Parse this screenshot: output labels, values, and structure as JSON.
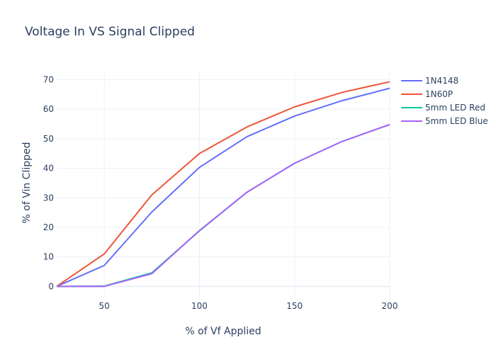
{
  "chart_data": {
    "type": "line",
    "title": "Voltage In VS Signal Clipped",
    "xlabel": "% of Vf Applied",
    "ylabel": "% of Vin Clipped",
    "x": [
      25,
      50,
      75,
      100,
      125,
      150,
      175,
      200
    ],
    "xlim": [
      25,
      200
    ],
    "ylim": [
      -4,
      73
    ],
    "xticks": [
      50,
      100,
      150,
      200
    ],
    "yticks": [
      0,
      10,
      20,
      30,
      40,
      50,
      60,
      70
    ],
    "grid": true,
    "legend_position": "top-right",
    "series": [
      {
        "name": "1N4148",
        "color": "#636efa",
        "values": [
          0,
          7.1,
          25.2,
          40.3,
          50.7,
          57.7,
          62.9,
          67.1
        ]
      },
      {
        "name": "1N60P",
        "color": "#EF553B",
        "values": [
          0,
          11,
          31,
          45,
          54,
          60.8,
          65.7,
          69.3
        ]
      },
      {
        "name": "5mm LED Red",
        "color": "#00cc96",
        "values": [
          0,
          0.1,
          4.6,
          18.8,
          31.9,
          41.7,
          49.1,
          54.8
        ]
      },
      {
        "name": "5mm LED Blue",
        "color": "#ab63fa",
        "values": [
          0,
          0,
          4.3,
          18.9,
          31.9,
          41.7,
          49.1,
          54.8
        ]
      }
    ]
  }
}
